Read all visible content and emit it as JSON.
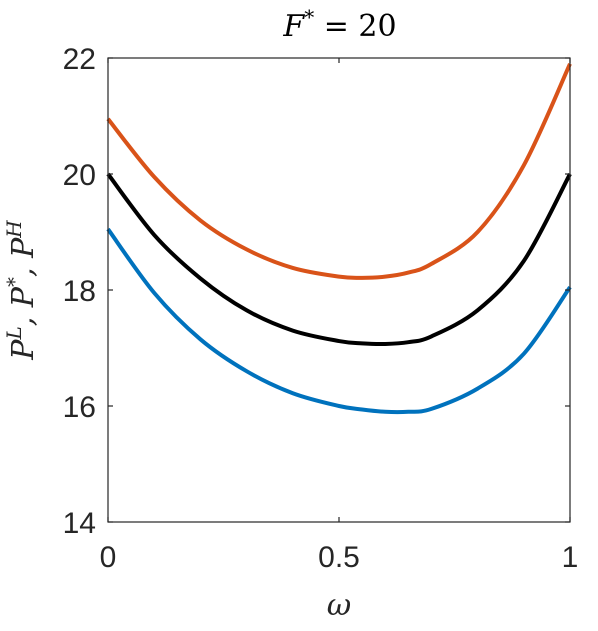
{
  "chart_data": {
    "type": "line",
    "title": "F* = 20",
    "title_parts": {
      "base": "F",
      "sup": "*",
      "rest": " = 20"
    },
    "xlabel": "ω",
    "ylabel": "P^L, P^*, P^H",
    "ylabel_parts": [
      {
        "base": "P",
        "sup": "L",
        "sep": ", "
      },
      {
        "base": "P",
        "sup": "*",
        "sep": ", "
      },
      {
        "base": "P",
        "sup": "H",
        "sep": ""
      }
    ],
    "xlim": [
      0,
      1
    ],
    "ylim": [
      14,
      22
    ],
    "xticks": [
      0,
      0.5,
      1
    ],
    "xtick_labels": [
      "0",
      "0.5",
      "1"
    ],
    "yticks": [
      14,
      16,
      18,
      20,
      22
    ],
    "ytick_labels": [
      "14",
      "16",
      "18",
      "20",
      "22"
    ],
    "grid": false,
    "x": [
      0,
      0.1,
      0.2,
      0.3,
      0.4,
      0.5,
      0.55,
      0.6,
      0.65,
      0.7,
      0.8,
      0.9,
      1.0
    ],
    "series": [
      {
        "color": "#D95319",
        "values": [
          20.95,
          19.95,
          19.2,
          18.7,
          18.38,
          18.23,
          18.21,
          18.23,
          18.3,
          18.45,
          19.0,
          20.15,
          21.9
        ]
      },
      {
        "color": "#000000",
        "values": [
          20.0,
          18.95,
          18.2,
          17.65,
          17.3,
          17.12,
          17.08,
          17.07,
          17.1,
          17.2,
          17.65,
          18.5,
          20.0
        ]
      },
      {
        "color": "#0072BD",
        "values": [
          19.05,
          17.95,
          17.15,
          16.6,
          16.22,
          16.0,
          15.94,
          15.9,
          15.9,
          15.95,
          16.3,
          16.9,
          18.05
        ]
      }
    ]
  }
}
